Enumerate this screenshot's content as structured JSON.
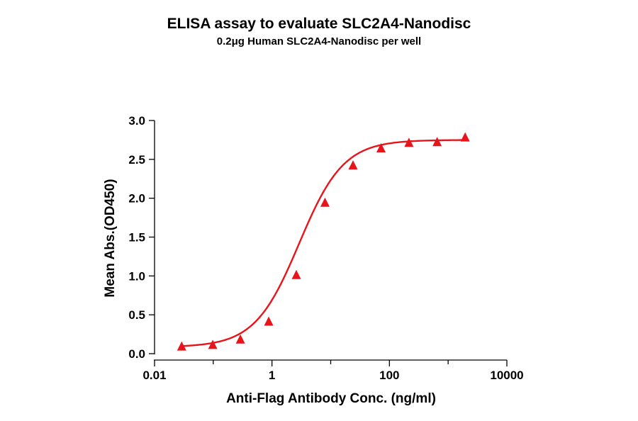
{
  "chart_data": {
    "type": "scatter",
    "title": "ELISA assay to evaluate SLC2A4-Nanodisc",
    "subtitle": "0.2μg Human SLC2A4-Nanodisc per well",
    "xlabel": "Anti-Flag Antibody Conc. (ng/ml)",
    "ylabel": "Mean Abs.(OD450)",
    "x_scale": "log",
    "xlim": [
      0.01,
      10000
    ],
    "ylim": [
      0,
      3.0
    ],
    "x_ticks": [
      {
        "value": 0.01,
        "label": "0.01"
      },
      {
        "value": 1,
        "label": "1"
      },
      {
        "value": 100,
        "label": "100"
      },
      {
        "value": 10000,
        "label": "10000"
      }
    ],
    "y_ticks": [
      {
        "value": 0,
        "label": "0.0"
      },
      {
        "value": 0.5,
        "label": "0.5"
      },
      {
        "value": 1.0,
        "label": "1.0"
      },
      {
        "value": 1.5,
        "label": "1.5"
      },
      {
        "value": 2.0,
        "label": "2.0"
      },
      {
        "value": 2.5,
        "label": "2.5"
      },
      {
        "value": 3.0,
        "label": "3.0"
      }
    ],
    "grid": false,
    "series": [
      {
        "color": "#e8141b",
        "marker": "triangle",
        "fit": "4PL",
        "x": [
          0.029,
          0.098,
          0.29,
          0.88,
          2.6,
          8.0,
          24,
          72,
          215,
          650,
          1950
        ],
        "y": [
          0.09,
          0.11,
          0.18,
          0.41,
          1.01,
          1.94,
          2.42,
          2.64,
          2.71,
          2.72,
          2.78
        ]
      }
    ]
  }
}
